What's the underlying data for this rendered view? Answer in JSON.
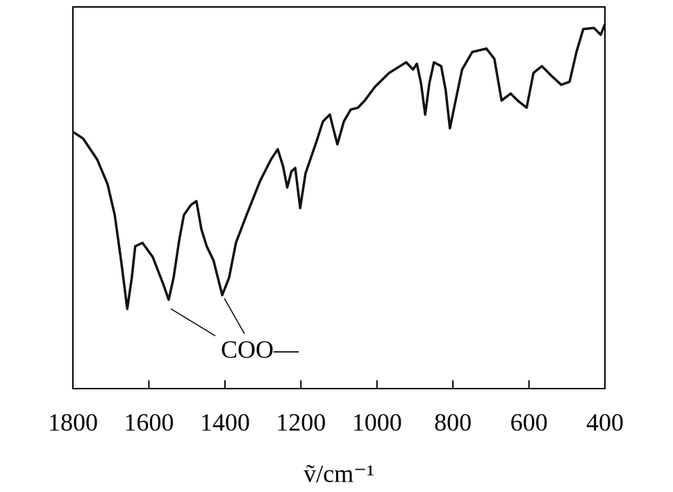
{
  "chart_data": {
    "type": "line",
    "x_label": "ṽ/cm⁻¹",
    "annotations": [
      "COO—"
    ],
    "xlim": [
      1800,
      400
    ],
    "ylim": [
      0,
      100
    ],
    "xticks": [
      1800,
      1600,
      1400,
      1200,
      1000,
      800,
      600,
      400
    ],
    "series": [
      {
        "color": "#111111",
        "x": [
          1800,
          1773,
          1736,
          1709,
          1690,
          1672,
          1657,
          1645,
          1636,
          1617,
          1590,
          1562,
          1548,
          1535,
          1520,
          1508,
          1489,
          1475,
          1462,
          1448,
          1430,
          1407,
          1389,
          1371,
          1343,
          1307,
          1279,
          1261,
          1247,
          1236,
          1225,
          1215,
          1202,
          1188,
          1160,
          1142,
          1124,
          1115,
          1104,
          1087,
          1069,
          1050,
          1032,
          1005,
          968,
          923,
          905,
          895,
          884,
          873,
          862,
          850,
          831,
          819,
          808,
          795,
          776,
          749,
          712,
          691,
          672,
          648,
          630,
          606,
          588,
          566,
          539,
          515,
          493,
          475,
          457,
          429,
          411,
          400
        ],
        "values": [
          67.3,
          65.5,
          60,
          53.6,
          45.5,
          32.7,
          20.9,
          29.1,
          37.3,
          38.2,
          34.5,
          27.3,
          23.3,
          29.1,
          39.1,
          45.5,
          48.2,
          49.1,
          41.8,
          37.3,
          33.6,
          24.5,
          29.1,
          38.2,
          45.5,
          54.5,
          60,
          62.7,
          58.2,
          52.7,
          56.9,
          57.8,
          47.3,
          56.4,
          64.5,
          70,
          71.8,
          68.2,
          64,
          70,
          73.1,
          73.6,
          75.5,
          79.1,
          82.7,
          85.5,
          83.6,
          85.1,
          80,
          71.8,
          80,
          85.5,
          84.5,
          78.2,
          68.2,
          74.5,
          83.6,
          88.2,
          89.1,
          86.4,
          75.5,
          77.3,
          75.5,
          73.6,
          82.7,
          84.5,
          81.8,
          79.6,
          80.4,
          88.2,
          94.2,
          94.5,
          92.7,
          95.5
        ]
      }
    ]
  }
}
